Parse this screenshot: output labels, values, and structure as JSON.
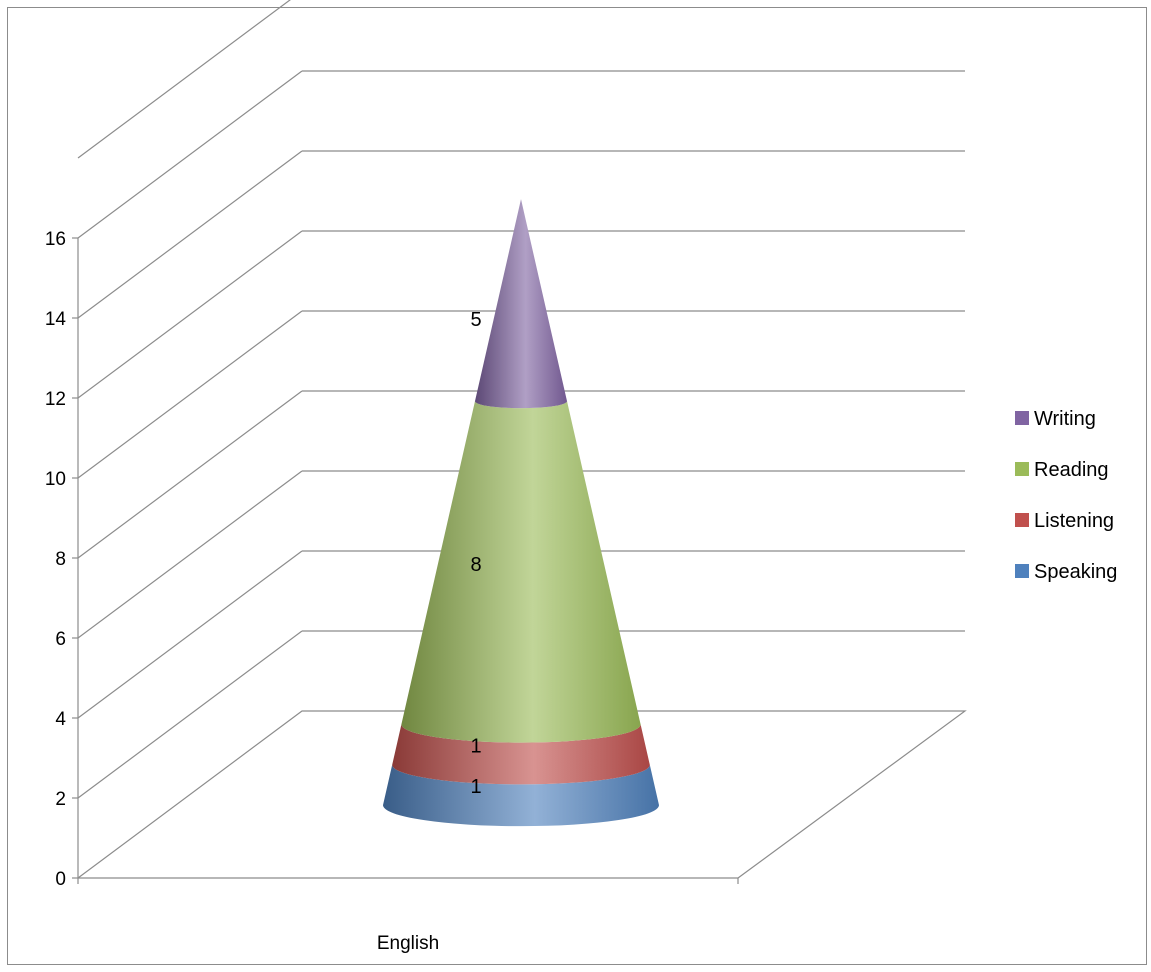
{
  "chart_data": {
    "type": "bar",
    "subtype": "3d-stacked-cone",
    "categories": [
      "English"
    ],
    "series": [
      {
        "name": "Speaking",
        "values": [
          1
        ],
        "color": "#4f81bd",
        "label": "1"
      },
      {
        "name": "Listening",
        "values": [
          1
        ],
        "color": "#c0504d",
        "label": "1"
      },
      {
        "name": "Reading",
        "values": [
          8
        ],
        "color": "#9bbb59",
        "label": "8"
      },
      {
        "name": "Writing",
        "values": [
          5
        ],
        "color": "#8064a2",
        "label": "5"
      }
    ],
    "ylim": [
      0,
      16
    ],
    "yticks": [
      "0",
      "2",
      "4",
      "6",
      "8",
      "10",
      "12",
      "14",
      "16"
    ],
    "grid": true,
    "legend": {
      "position": "right",
      "order": [
        "Writing",
        "Reading",
        "Listening",
        "Speaking"
      ]
    }
  }
}
